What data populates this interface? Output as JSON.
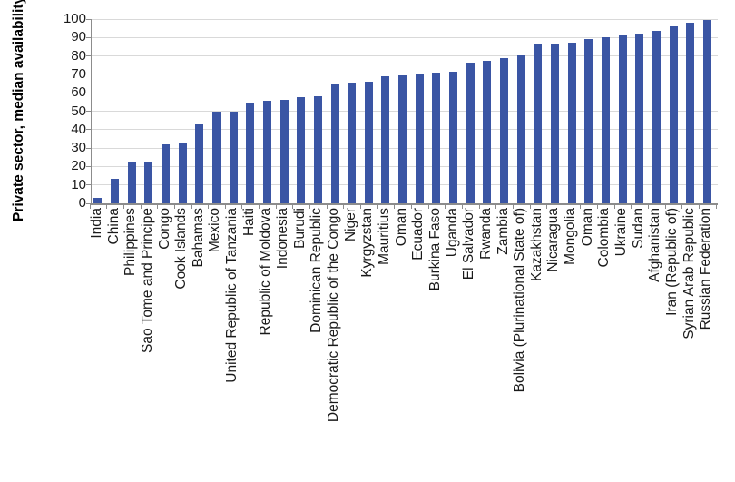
{
  "chart_data": {
    "type": "bar",
    "title": "",
    "ylabel": "Private sector, median availability (%)",
    "xlabel": "",
    "ylim": [
      0,
      100
    ],
    "yticks": [
      0,
      10,
      20,
      30,
      40,
      50,
      60,
      70,
      80,
      90,
      100
    ],
    "grid": true,
    "legend": "none",
    "bar_color": "#3a55a4",
    "axis_line_color": "#8c8c8c",
    "gridline_color": "#d9d9d9",
    "text_color": "#1a1a1a",
    "categories": [
      "India",
      "China",
      "Philippines",
      "Sao Tome and Principe",
      "Congo",
      "Cook Islands",
      "Bahamas",
      "Mexico",
      "United Republic of Tanzania",
      "Haiti",
      "Republic of Moldova",
      "Indonesia",
      "Burudi",
      "Dominican Republic",
      "Democratic Republic of the Congo",
      "Niger",
      "Kyrgyzstan",
      "Mauritius",
      "Oman",
      "Ecuador",
      "Burkina Faso",
      "Uganda",
      "El Salvador",
      "Rwanda",
      "Zambia",
      "Bolivia (Plurinational State of)",
      "Kazakhstan",
      "Nicaragua",
      "Mongolia",
      "Oman",
      "Colombia",
      "Ukraine",
      "Sudan",
      "Afghanistan",
      "Iran (Republic of)",
      "Syrian Arab Republic",
      "Russian Federation"
    ],
    "values": [
      3,
      13.5,
      22,
      22.5,
      32,
      33,
      43,
      50,
      50,
      54.5,
      55.5,
      56,
      57.5,
      58,
      64.5,
      65.5,
      66,
      69,
      69.5,
      70,
      71,
      71.5,
      76.5,
      77.5,
      79,
      80.5,
      86,
      86,
      87,
      89,
      90,
      91,
      91.5,
      93.5,
      96,
      98,
      99.5
    ]
  }
}
